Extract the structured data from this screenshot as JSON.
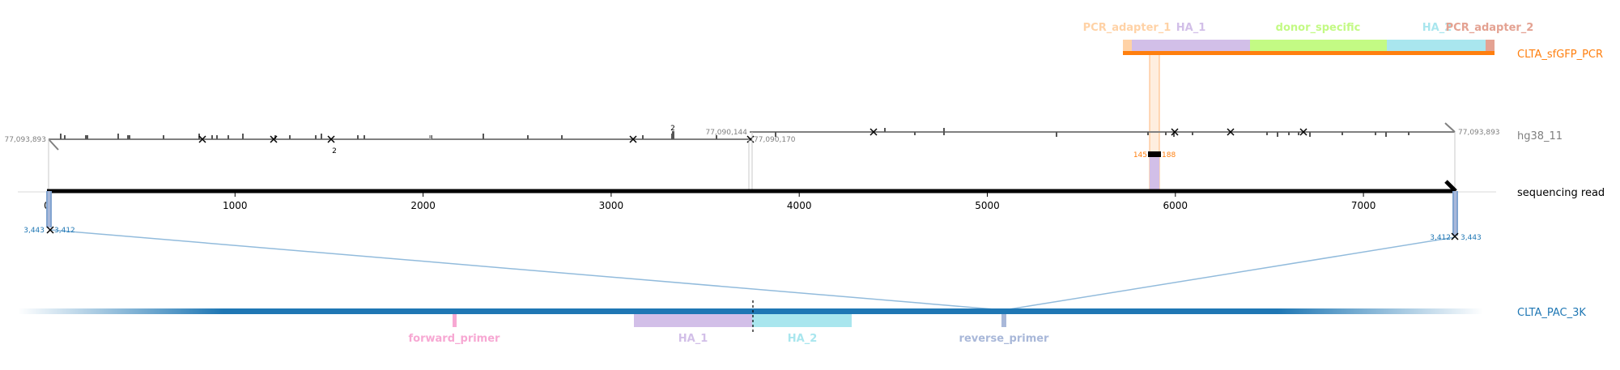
{
  "track_labels": {
    "donor": "CLTA_sfGFP_PCR",
    "genome": "hg38_11",
    "read": "sequencing read",
    "target": "CLTA_PAC_3K"
  },
  "donor_features": {
    "pcr_adapter_1": "PCR_adapter_1",
    "ha_1": "HA_1",
    "donor_specific": "donor_specific",
    "ha_2": "HA_2",
    "pcr_adapter_2": "PCR_adapter_2"
  },
  "target_features": {
    "forward_primer": "forward_primer",
    "ha_1": "HA_1",
    "ha_2": "HA_2",
    "reverse_primer": "reverse_primer"
  },
  "genome_coords": {
    "left_start": "77,093,893",
    "left_end": "77,090,144",
    "right_start": "77,090,170",
    "right_end": "77,093,893"
  },
  "indel_counts": {
    "left_ins_a": "2",
    "left_ins_b": "2"
  },
  "donor_junction": {
    "left": "145",
    "right": "188"
  },
  "target_coords": {
    "left_a": "3,443",
    "left_b": "3,412",
    "right_a": "3,412",
    "right_b": "3,443"
  },
  "read_axis": {
    "ticks": [
      0,
      1000,
      2000,
      3000,
      4000,
      5000,
      6000,
      7000
    ],
    "tick_labels": [
      "0",
      "1000",
      "2000",
      "3000",
      "4000",
      "5000",
      "6000",
      "7000"
    ],
    "xlim": [
      0,
      7500
    ]
  },
  "colors": {
    "donor_track": "#ff7f0e",
    "genome_track": "#7f7f7f",
    "read_track": "#000000",
    "target_track": "#1f77b4",
    "pcr_adapter_1": "#ffd2a6",
    "ha_1": "#d2bfe8",
    "donor_specific": "#c3fa84",
    "ha_2": "#a9e6ee",
    "pcr_adapter_2": "#e4a292",
    "forward_primer": "#f7a8d3",
    "reverse_primer": "#a9b8d9"
  }
}
